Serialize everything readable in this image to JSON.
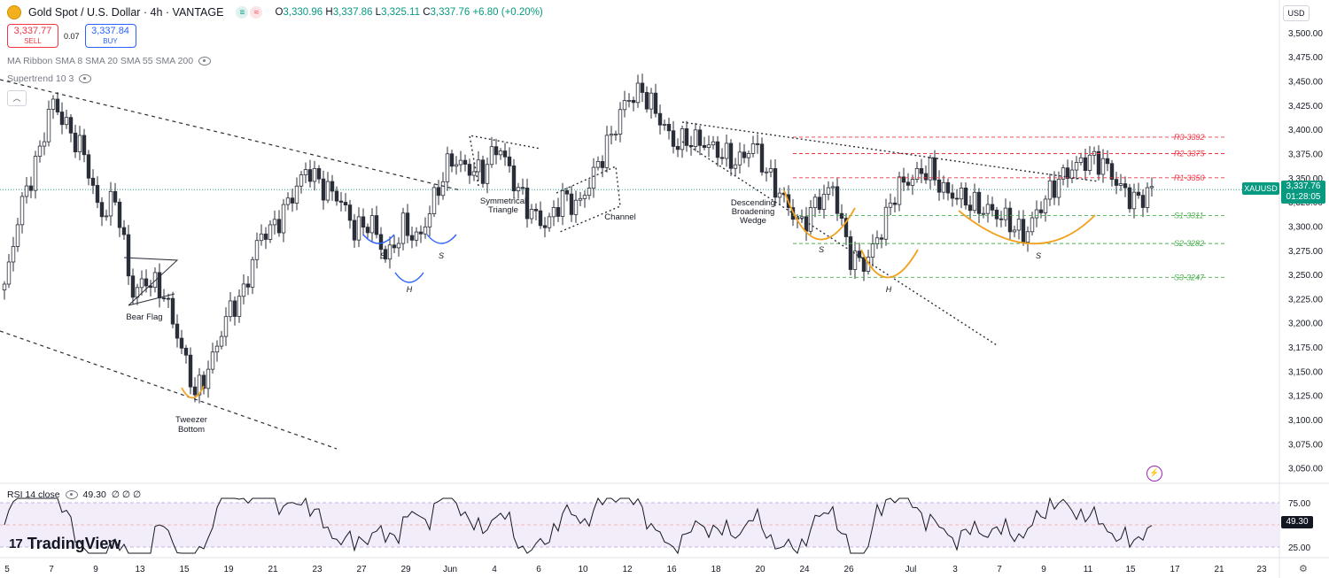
{
  "header": {
    "title": "Gold Spot / U.S. Dollar · 4h · VANTAGE",
    "ohlc": {
      "o_label": "O",
      "o": "3,330.96",
      "h_label": "H",
      "h": "3,337.86",
      "l_label": "L",
      "l": "3,325.11",
      "c_label": "C",
      "c": "3,337.76",
      "change": "+6.80 (+0.20%)"
    },
    "status_dot_1": "≡",
    "status_dot_2": "≈"
  },
  "trade": {
    "sell_price": "3,337.77",
    "sell_label": "SELL",
    "spread": "0.07",
    "buy_price": "3,337.84",
    "buy_label": "BUY"
  },
  "indicators": {
    "ma_ribbon": "MA Ribbon SMA 8 SMA 20 SMA 55 SMA 200",
    "supertrend": "Supertrend 10 3"
  },
  "currency_button": "USD",
  "price_tag": {
    "symbol": "XAUUSD",
    "price": "3,337.76",
    "countdown": "01:28:05"
  },
  "rsi": {
    "label": "RSI 14 close",
    "value": "49.30",
    "placeholders": "∅ ∅ ∅",
    "tag": "49.30",
    "upper": "75.00",
    "lower": "25.00"
  },
  "branding": "TradingView",
  "chart_data": {
    "type": "candlestick",
    "symbol": "XAUUSD",
    "timeframe": "4h",
    "ylim": [
      3035,
      3510
    ],
    "y_ticks": [
      "3,500.00",
      "3,475.00",
      "3,450.00",
      "3,425.00",
      "3,400.00",
      "3,375.00",
      "3,350.00",
      "3,325.00",
      "3,300.00",
      "3,275.00",
      "3,250.00",
      "3,225.00",
      "3,200.00",
      "3,175.00",
      "3,150.00",
      "3,125.00",
      "3,100.00",
      "3,075.00",
      "3,050.00"
    ],
    "x_ticks": [
      "5",
      "7",
      "9",
      "13",
      "15",
      "19",
      "21",
      "23",
      "27",
      "29",
      "Jun",
      "4",
      "6",
      "10",
      "12",
      "16",
      "18",
      "20",
      "24",
      "26",
      "Jul",
      "3",
      "7",
      "9",
      "11",
      "15",
      "17",
      "21",
      "23"
    ],
    "close_path": [
      [
        "May 5",
        3235
      ],
      [
        "May 5",
        3320
      ],
      [
        "May 6",
        3365
      ],
      [
        "May 7",
        3430
      ],
      [
        "May 7",
        3400
      ],
      [
        "May 8",
        3375
      ],
      [
        "May 9",
        3310
      ],
      [
        "May 11",
        3330
      ],
      [
        "May 12",
        3230
      ],
      [
        "May 13",
        3245
      ],
      [
        "May 13",
        3230
      ],
      [
        "May 14",
        3180
      ],
      [
        "May 15",
        3125
      ],
      [
        "May 15",
        3160
      ],
      [
        "May 16",
        3210
      ],
      [
        "May 19",
        3230
      ],
      [
        "May 20",
        3290
      ],
      [
        "May 21",
        3300
      ],
      [
        "May 22",
        3330
      ],
      [
        "May 23",
        3360
      ],
      [
        "May 25",
        3340
      ],
      [
        "May 26",
        3330
      ],
      [
        "May 27",
        3295
      ],
      [
        "May 28",
        3305
      ],
      [
        "May 29",
        3265
      ],
      [
        "May 30",
        3300
      ],
      [
        "May 31",
        3285
      ],
      [
        "Jun 1",
        3330
      ],
      [
        "Jun 2",
        3370
      ],
      [
        "Jun 3",
        3360
      ],
      [
        "Jun 4",
        3355
      ],
      [
        "Jun 5",
        3385
      ],
      [
        "Jun 6",
        3345
      ],
      [
        "Jun 8",
        3315
      ],
      [
        "Jun 9",
        3300
      ],
      [
        "Jun 10",
        3330
      ],
      [
        "Jun 11",
        3320
      ],
      [
        "Jun 11",
        3355
      ],
      [
        "Jun 12",
        3390
      ],
      [
        "Jun 13",
        3430
      ],
      [
        "Jun 14",
        3440
      ],
      [
        "Jun 15",
        3415
      ],
      [
        "Jun 16",
        3385
      ],
      [
        "Jun 17",
        3390
      ],
      [
        "Jun 18",
        3385
      ],
      [
        "Jun 19",
        3375
      ],
      [
        "Jun 20",
        3365
      ],
      [
        "Jun 22",
        3385
      ],
      [
        "Jun 23",
        3350
      ],
      [
        "Jun 23",
        3325
      ],
      [
        "Jun 24",
        3300
      ],
      [
        "Jun 25",
        3325
      ],
      [
        "Jun 26",
        3340
      ],
      [
        "Jun 27",
        3270
      ],
      [
        "Jun 29",
        3260
      ],
      [
        "Jun 29",
        3295
      ],
      [
        "Jun 30",
        3340
      ],
      [
        "Jul 1",
        3350
      ],
      [
        "Jul 2",
        3360
      ],
      [
        "Jul 3",
        3335
      ],
      [
        "Jul 4",
        3330
      ],
      [
        "Jul 5",
        3320
      ],
      [
        "Jul 7",
        3315
      ],
      [
        "Jul 8",
        3305
      ],
      [
        "Jul 9",
        3290
      ],
      [
        "Jul 10",
        3320
      ],
      [
        "Jul 11",
        3345
      ],
      [
        "Jul 12",
        3360
      ],
      [
        "Jul 13",
        3370
      ],
      [
        "Jul 14",
        3365
      ],
      [
        "Jul 15",
        3340
      ],
      [
        "Jul 15",
        3325
      ],
      [
        "Jul 16",
        3337.76
      ]
    ],
    "horizontal_levels": [
      {
        "label": "R3-3392",
        "value": 3392,
        "color": "#f23645"
      },
      {
        "label": "R2-3375",
        "value": 3375,
        "color": "#f23645"
      },
      {
        "label": "R1-3350",
        "value": 3350,
        "color": "#f23645"
      },
      {
        "label": "S1-3311",
        "value": 3311,
        "color": "#4caf50"
      },
      {
        "label": "S2-3282",
        "value": 3282,
        "color": "#4caf50"
      },
      {
        "label": "S3-3247",
        "value": 3247,
        "color": "#4caf50"
      }
    ],
    "annotations": [
      "Bear Flag",
      "Tweezer",
      "Bottom",
      "Symmetrical",
      "Triangle",
      "Channel",
      "Descending",
      "Broadening",
      "Wedge",
      "S",
      "H",
      "S",
      "S",
      "H",
      "S"
    ],
    "rsi_ylim": [
      15,
      85
    ]
  }
}
